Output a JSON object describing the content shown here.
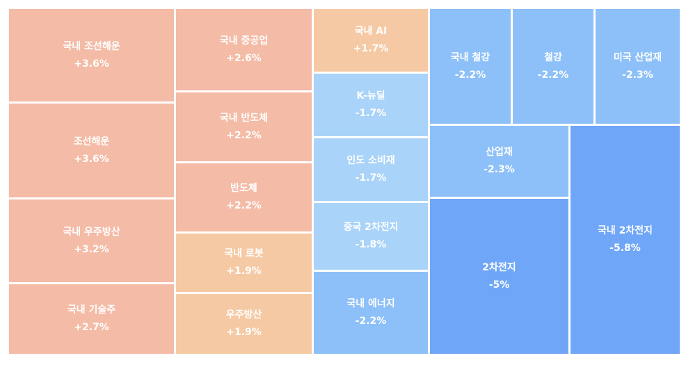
{
  "chart_data": {
    "type": "treemap",
    "colors": {
      "up_strong": "#f4bba6",
      "up_weak": "#f6c9a5",
      "down_weak": "#a9d3f8",
      "down_mid": "#8dc0f8",
      "down_strong": "#6fa6f7"
    },
    "items": [
      {
        "name": "국내 조선해운",
        "label": "+3.6%",
        "value": 3.6,
        "color": "#f4bba6"
      },
      {
        "name": "조선해운",
        "label": "+3.6%",
        "value": 3.6,
        "color": "#f4bba6"
      },
      {
        "name": "국내 우주방산",
        "label": "+3.2%",
        "value": 3.2,
        "color": "#f4bba6"
      },
      {
        "name": "국내 기술주",
        "label": "+2.7%",
        "value": 2.7,
        "color": "#f4bba6"
      },
      {
        "name": "국내 중공업",
        "label": "+2.6%",
        "value": 2.6,
        "color": "#f4bba6"
      },
      {
        "name": "국내 반도체",
        "label": "+2.2%",
        "value": 2.2,
        "color": "#f4bba6"
      },
      {
        "name": "반도체",
        "label": "+2.2%",
        "value": 2.2,
        "color": "#f4bba6"
      },
      {
        "name": "국내 로봇",
        "label": "+1.9%",
        "value": 1.9,
        "color": "#f6c9a5"
      },
      {
        "name": "우주방산",
        "label": "+1.9%",
        "value": 1.9,
        "color": "#f6c9a5"
      },
      {
        "name": "국내 AI",
        "label": "+1.7%",
        "value": 1.7,
        "color": "#f6c9a5"
      },
      {
        "name": "K-뉴딜",
        "label": "-1.7%",
        "value": -1.7,
        "color": "#a9d3f8"
      },
      {
        "name": "인도 소비재",
        "label": "-1.7%",
        "value": -1.7,
        "color": "#a9d3f8"
      },
      {
        "name": "중국 2차전지",
        "label": "-1.8%",
        "value": -1.8,
        "color": "#a9d3f8"
      },
      {
        "name": "국내 에너지",
        "label": "-2.2%",
        "value": -2.2,
        "color": "#8dc0f8"
      },
      {
        "name": "국내 철강",
        "label": "-2.2%",
        "value": -2.2,
        "color": "#8dc0f8"
      },
      {
        "name": "철강",
        "label": "-2.2%",
        "value": -2.2,
        "color": "#8dc0f8"
      },
      {
        "name": "미국 산업재",
        "label": "-2.3%",
        "value": -2.3,
        "color": "#8dc0f8"
      },
      {
        "name": "산업재",
        "label": "-2.3%",
        "value": -2.3,
        "color": "#8dc0f8"
      },
      {
        "name": "2차전지",
        "label": "-5%",
        "value": -5,
        "color": "#6fa6f7"
      },
      {
        "name": "국내 2차전지",
        "label": "-5.8%",
        "value": -5.8,
        "color": "#6fa6f7"
      }
    ]
  }
}
